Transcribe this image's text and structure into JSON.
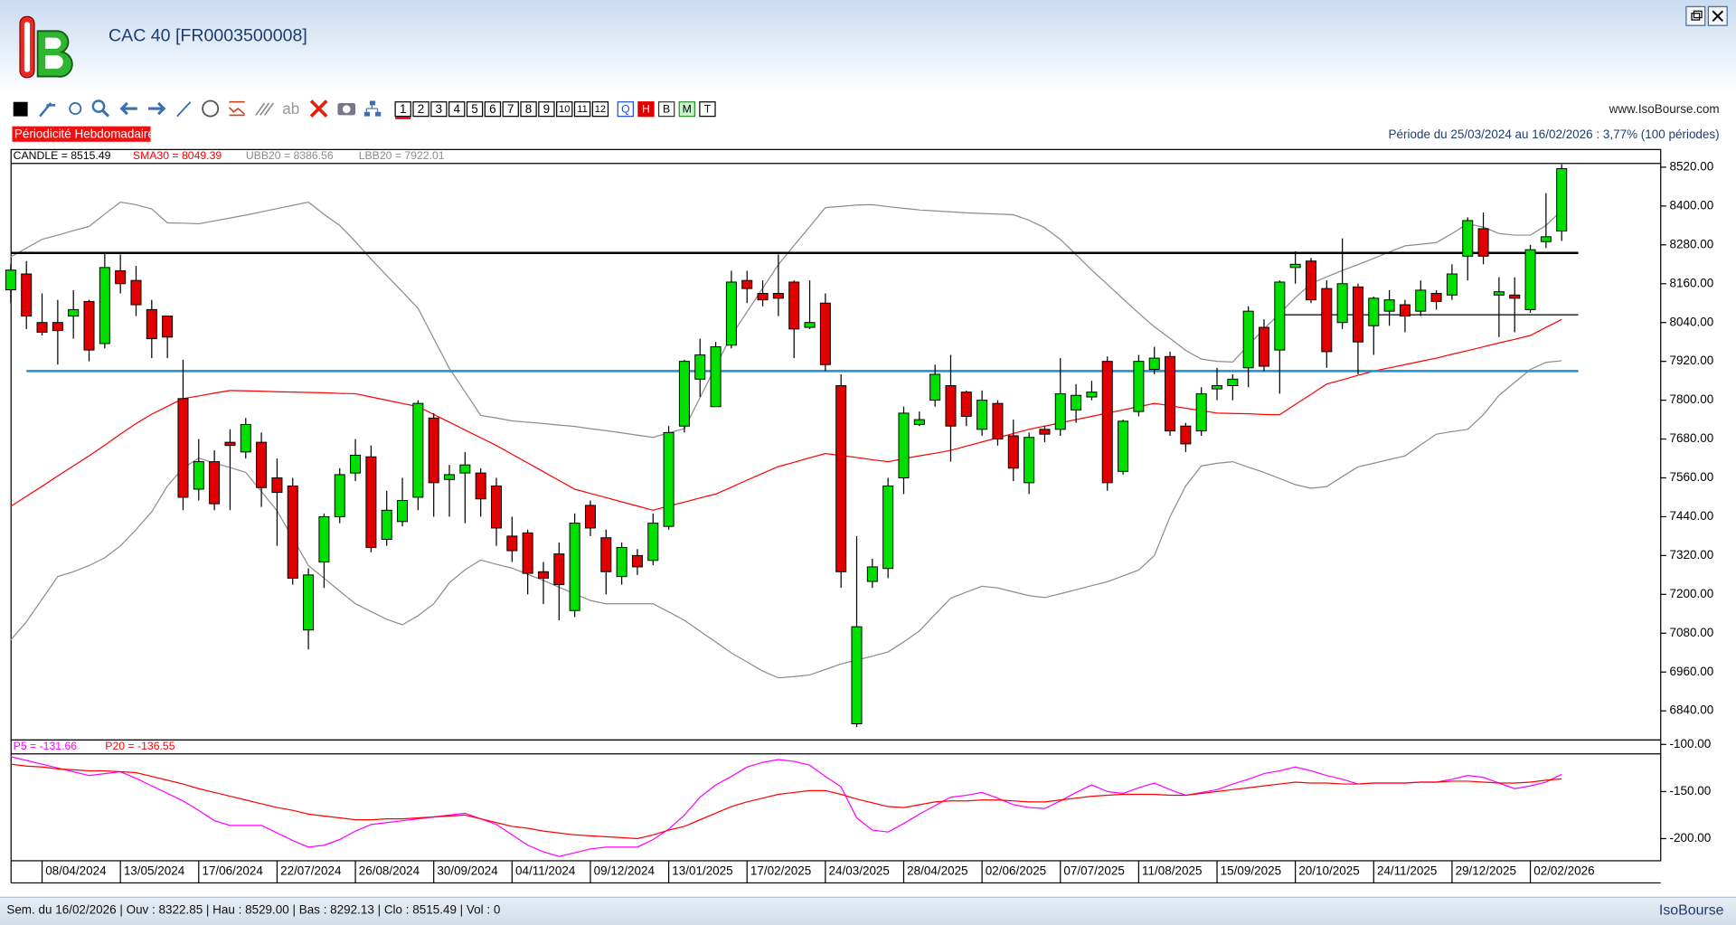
{
  "window": {
    "title": "CAC 40 [FR0003500008]",
    "website": "www.IsoBourse.com",
    "periodicity": "Périodicité Hebdomadaire",
    "period": "Période du 25/03/2024 au 16/02/2026 : 3,77% (100 périodes)",
    "footer": "Sem. du 16/02/2026 | Ouv : 8322.85 | Hau : 8529.00 | Bas : 8292.13 | Clo : 8515.49 | Vol : 0",
    "brand": "IsoBourse",
    "toolbar": {
      "text_tool": "ab",
      "numbers": [
        "1",
        "2",
        "3",
        "4",
        "5",
        "6",
        "7",
        "8",
        "9",
        "10",
        "11",
        "12"
      ],
      "views": [
        "Q",
        "H",
        "B",
        "M",
        "T"
      ]
    }
  },
  "chart_data": [
    {
      "type": "candlestick",
      "candle_label": "CANDLE = 8515.49",
      "up_color": "#00e000",
      "down_color": "#e00000",
      "categories": [
        null,
        null,
        "08/04/2024",
        null,
        null,
        null,
        null,
        "13/05/2024",
        null,
        null,
        null,
        null,
        "17/06/2024",
        null,
        null,
        null,
        null,
        "22/07/2024",
        null,
        null,
        null,
        null,
        "26/08/2024",
        null,
        null,
        null,
        null,
        "30/09/2024",
        null,
        null,
        null,
        null,
        "04/11/2024",
        null,
        null,
        null,
        null,
        "09/12/2024",
        null,
        null,
        null,
        null,
        "13/01/2025",
        null,
        null,
        null,
        null,
        "17/02/2025",
        null,
        null,
        null,
        null,
        "24/03/2025",
        null,
        null,
        null,
        null,
        "28/04/2025",
        null,
        null,
        null,
        null,
        "02/06/2025",
        null,
        null,
        null,
        null,
        "07/07/2025",
        null,
        null,
        null,
        null,
        "11/08/2025",
        null,
        null,
        null,
        null,
        "15/09/2025",
        null,
        null,
        null,
        null,
        "20/10/2025",
        null,
        null,
        null,
        null,
        "24/11/2025",
        null,
        null,
        null,
        null,
        "29/12/2025",
        null,
        null,
        null,
        null,
        "02/02/2026",
        null,
        null
      ],
      "open": [
        8141,
        8190,
        8040,
        8040,
        8060,
        8105,
        7975,
        8200,
        8170,
        8080,
        8060,
        7805,
        7525,
        7610,
        7670,
        7640,
        7670,
        7560,
        7535,
        7090,
        7300,
        7440,
        7575,
        7625,
        7370,
        7425,
        7500,
        7745,
        7555,
        7575,
        7575,
        7535,
        7380,
        7390,
        7270,
        7325,
        7150,
        7475,
        7375,
        7255,
        7320,
        7305,
        7410,
        7720,
        7865,
        7780,
        7970,
        8170,
        8130,
        8130,
        8165,
        8025,
        8100,
        7845,
        6800,
        7240,
        7280,
        7560,
        7725,
        7800,
        7845,
        7825,
        7710,
        7790,
        7690,
        7545,
        7710,
        7710,
        7770,
        7810,
        7920,
        7580,
        7765,
        7895,
        7935,
        7720,
        7705,
        7835,
        7845,
        7900,
        8025,
        7955,
        8210,
        8230,
        8145,
        8040,
        8150,
        8030,
        8075,
        8095,
        8075,
        8130,
        8125,
        8245,
        8330,
        8125,
        8125,
        8080,
        8290,
        8322.85
      ],
      "high": [
        8220,
        8230,
        8130,
        8110,
        8140,
        8110,
        8255,
        8250,
        8215,
        8110,
        8060,
        7925,
        7680,
        7645,
        7710,
        7745,
        7700,
        7620,
        7560,
        7280,
        7450,
        7590,
        7680,
        7660,
        7520,
        7560,
        7800,
        7760,
        7600,
        7640,
        7590,
        7560,
        7440,
        7400,
        7300,
        7360,
        7450,
        7490,
        7400,
        7360,
        7340,
        7450,
        7720,
        7925,
        7990,
        7980,
        8200,
        8200,
        8170,
        8250,
        8170,
        8170,
        8130,
        7880,
        7380,
        7310,
        7560,
        7780,
        7765,
        7910,
        7940,
        7830,
        7830,
        7800,
        7740,
        7700,
        7720,
        7930,
        7850,
        7860,
        7935,
        7740,
        7940,
        7965,
        7950,
        7730,
        7840,
        7900,
        7880,
        8090,
        8050,
        8170,
        8260,
        8240,
        8170,
        8300,
        8160,
        8120,
        8140,
        8110,
        8170,
        8140,
        8220,
        8365,
        8380,
        8180,
        8180,
        8280,
        8440,
        8529
      ],
      "low": [
        8100,
        8020,
        8000,
        7910,
        7990,
        7920,
        7960,
        8130,
        8060,
        7930,
        7930,
        7460,
        7490,
        7460,
        7460,
        7620,
        7470,
        7350,
        7230,
        7030,
        7220,
        7420,
        7550,
        7330,
        7350,
        7410,
        7460,
        7440,
        7440,
        7420,
        7440,
        7350,
        7300,
        7200,
        7170,
        7120,
        7130,
        7380,
        7200,
        7230,
        7260,
        7290,
        7400,
        7700,
        7810,
        7780,
        7960,
        8100,
        8090,
        8060,
        7930,
        8020,
        7890,
        7220,
        6790,
        7220,
        7250,
        7510,
        7720,
        7780,
        7610,
        7720,
        7690,
        7660,
        7550,
        7510,
        7670,
        7690,
        7730,
        7800,
        7520,
        7570,
        7750,
        7880,
        7690,
        7640,
        7690,
        7800,
        7800,
        7840,
        7890,
        7820,
        8160,
        8100,
        7900,
        8020,
        7880,
        7940,
        8030,
        8010,
        8060,
        8080,
        8110,
        8170,
        8220,
        7995,
        8010,
        8070,
        8270,
        8292.13
      ],
      "close": [
        8202,
        8060,
        8010,
        8015,
        8080,
        7955,
        8210,
        8160,
        8095,
        7990,
        7995,
        7500,
        7610,
        7480,
        7660,
        7725,
        7530,
        7515,
        7250,
        7260,
        7440,
        7570,
        7630,
        7345,
        7460,
        7490,
        7790,
        7545,
        7570,
        7600,
        7495,
        7405,
        7335,
        7265,
        7250,
        7230,
        7420,
        7405,
        7270,
        7345,
        7285,
        7420,
        7700,
        7920,
        7940,
        7965,
        8165,
        8145,
        8110,
        8115,
        8020,
        8040,
        7910,
        7270,
        7100,
        7285,
        7535,
        7760,
        7740,
        7880,
        7720,
        7750,
        7800,
        7680,
        7590,
        7685,
        7695,
        7820,
        7815,
        7825,
        7545,
        7735,
        7920,
        7930,
        7705,
        7665,
        7820,
        7845,
        7865,
        8075,
        7905,
        8165,
        8220,
        8110,
        7950,
        8160,
        7980,
        8115,
        8110,
        8060,
        8140,
        8105,
        8190,
        8355,
        8245,
        8135,
        8115,
        8265,
        8305,
        8515.49
      ],
      "overlays": [
        {
          "name": "SMA30 = 8049.39",
          "color": "#ff0000",
          "values": [
            7472,
            7503,
            7534,
            7566,
            7597,
            7628,
            7661,
            7695,
            7728,
            7757,
            7781,
            7805,
            7813,
            7822,
            7830,
            7829,
            7828,
            7826,
            7825,
            7824,
            7823,
            7821,
            7820,
            7810,
            7800,
            7790,
            7780,
            7756,
            7732,
            7708,
            7684,
            7660,
            7633,
            7606,
            7579,
            7552,
            7525,
            7512,
            7499,
            7486,
            7473,
            7460,
            7473,
            7485,
            7498,
            7510,
            7531,
            7553,
            7574,
            7595,
            7608,
            7622,
            7635,
            7629,
            7623,
            7616,
            7610,
            7619,
            7628,
            7636,
            7645,
            7658,
            7671,
            7684,
            7697,
            7710,
            7720,
            7730,
            7740,
            7750,
            7760,
            7770,
            7780,
            7790,
            7783,
            7775,
            7768,
            7760,
            7759,
            7758,
            7756,
            7755,
            7787,
            7818,
            7850,
            7863,
            7877,
            7890,
            7900,
            7910,
            7920,
            7930,
            7942,
            7953,
            7965,
            7977,
            7988,
            8000,
            8025,
            8049.39
          ]
        },
        {
          "name": "UBB20 = 8386.56",
          "color": "#8c8c8c",
          "values": [
            8243,
            8270,
            8297,
            8310,
            8324,
            8337,
            8375,
            8412,
            8404,
            8391,
            8348,
            8347,
            8345,
            8354,
            8363,
            8372,
            8382,
            8392,
            8402,
            8412,
            8374,
            8340,
            8290,
            8236,
            8185,
            8135,
            8084,
            7991,
            7898,
            7826,
            7753,
            7745,
            7736,
            7732,
            7728,
            7723,
            7719,
            7712,
            7706,
            7699,
            7692,
            7685,
            7699,
            7712,
            7808,
            7904,
            8000,
            8073,
            8146,
            8219,
            8278,
            8336,
            8395,
            8399,
            8403,
            8404,
            8398,
            8393,
            8388,
            8385,
            8382,
            8379,
            8377,
            8375,
            8373,
            8356,
            8333,
            8297,
            8250,
            8202,
            8158,
            8113,
            8069,
            8027,
            7991,
            7954,
            7927,
            7920,
            7918,
            7970,
            8020,
            8068,
            8117,
            8160,
            8181,
            8201,
            8219,
            8238,
            8258,
            8277,
            8282,
            8287,
            8315,
            8345,
            8335,
            8315,
            8310,
            8310,
            8340,
            8386.56
          ]
        },
        {
          "name": "LBB20 = 7922.01",
          "color": "#8c8c8c",
          "values": [
            7059,
            7115,
            7185,
            7255,
            7270,
            7289,
            7313,
            7350,
            7400,
            7455,
            7535,
            7590,
            7621,
            7606,
            7592,
            7577,
            7518,
            7458,
            7374,
            7289,
            7250,
            7210,
            7171,
            7147,
            7123,
            7106,
            7134,
            7171,
            7236,
            7276,
            7306,
            7293,
            7281,
            7262,
            7243,
            7222,
            7202,
            7181,
            7171,
            7171,
            7171,
            7171,
            7146,
            7120,
            7086,
            7053,
            7019,
            6991,
            6963,
            6942,
            6946,
            6951,
            6968,
            6985,
            6997,
            7009,
            7022,
            7053,
            7087,
            7138,
            7188,
            7207,
            7225,
            7220,
            7208,
            7196,
            7190,
            7202,
            7214,
            7227,
            7239,
            7257,
            7275,
            7320,
            7440,
            7535,
            7597,
            7605,
            7610,
            7593,
            7577,
            7558,
            7539,
            7528,
            7533,
            7564,
            7594,
            7605,
            7617,
            7628,
            7662,
            7695,
            7703,
            7710,
            7755,
            7815,
            7855,
            7895,
            7917,
            7922.01
          ]
        }
      ],
      "hlines": [
        {
          "value": 8255,
          "color": "#000000",
          "style": "bold",
          "from": 0
        },
        {
          "value": 7890,
          "color": "#1f8fd0",
          "style": "bold",
          "from": 1
        },
        {
          "value": 8064,
          "color": "#000000",
          "style": "thin",
          "from": 81
        }
      ],
      "ylim": [
        6750,
        8530
      ],
      "yticks": [
        {
          "value": 8520,
          "label": "8520.00"
        },
        {
          "value": 8400,
          "label": "8400.00"
        },
        {
          "value": 8280,
          "label": "8280.00"
        },
        {
          "value": 8160,
          "label": "8160.00"
        },
        {
          "value": 8040,
          "label": "8040.00"
        },
        {
          "value": 7920,
          "label": "7920.00"
        },
        {
          "value": 7800,
          "label": "7800.00"
        },
        {
          "value": 7680,
          "label": "7680.00"
        },
        {
          "value": 7560,
          "label": "7560.00"
        },
        {
          "value": 7440,
          "label": "7440.00"
        },
        {
          "value": 7320,
          "label": "7320.00"
        },
        {
          "value": 7200,
          "label": "7200.00"
        },
        {
          "value": 7080,
          "label": "7080.00"
        },
        {
          "value": 6960,
          "label": "6960.00"
        },
        {
          "value": 6840,
          "label": "6840.00"
        }
      ]
    },
    {
      "type": "line",
      "series": [
        {
          "name": "P5 = -131.66",
          "color": "#ff00ff",
          "values": [
            -113,
            -117,
            -121,
            -125,
            -129,
            -133,
            -131,
            -129,
            -136,
            -144,
            -152,
            -160,
            -170,
            -181,
            -186,
            -186,
            -186,
            -194,
            -202,
            -209,
            -207,
            -201,
            -192,
            -185,
            -183,
            -181,
            -179,
            -177,
            -175,
            -173,
            -179,
            -185,
            -196,
            -207,
            -214,
            -219,
            -215,
            -211,
            -209,
            -209,
            -209,
            -201,
            -190,
            -175,
            -156,
            -143,
            -134,
            -124,
            -119,
            -116,
            -118,
            -122,
            -134,
            -145,
            -178,
            -191,
            -193,
            -184,
            -174,
            -165,
            -156,
            -154,
            -151,
            -157,
            -164,
            -167,
            -168,
            -160,
            -151,
            -143,
            -150,
            -152,
            -146,
            -141,
            -148,
            -154,
            -151,
            -148,
            -142,
            -137,
            -131,
            -128,
            -124,
            -128,
            -133,
            -137,
            -142,
            -141,
            -141,
            -141,
            -140,
            -140,
            -137,
            -133,
            -135,
            -141,
            -147,
            -144,
            -140,
            -131.66
          ]
        },
        {
          "name": "P20 = -136.55",
          "color": "#ff0000",
          "values": [
            -121,
            -123,
            -124,
            -126,
            -127,
            -128,
            -128,
            -129,
            -130,
            -134,
            -138,
            -142,
            -147,
            -151,
            -155,
            -159,
            -163,
            -167,
            -170,
            -174,
            -176,
            -178,
            -180,
            -180,
            -179,
            -179,
            -178,
            -177,
            -176,
            -175,
            -179,
            -183,
            -187,
            -189,
            -192,
            -194,
            -196,
            -197,
            -198,
            -199,
            -200,
            -196,
            -191,
            -187,
            -180,
            -173,
            -166,
            -161,
            -157,
            -153,
            -151,
            -149,
            -149,
            -153,
            -158,
            -162,
            -166,
            -167,
            -164,
            -161,
            -160,
            -160,
            -159,
            -159,
            -160,
            -161,
            -161,
            -159,
            -157,
            -155,
            -154,
            -153,
            -153,
            -153,
            -154,
            -154,
            -152,
            -150,
            -148,
            -146,
            -144,
            -142,
            -140,
            -141,
            -141,
            -142,
            -142,
            -141,
            -141,
            -141,
            -140,
            -140,
            -139,
            -139,
            -140,
            -141,
            -141,
            -140,
            -138,
            -136.55
          ]
        }
      ],
      "ylim": [
        -223.5,
        -95.3
      ],
      "yticks": [
        {
          "value": -100,
          "label": "-100.00"
        },
        {
          "value": -150,
          "label": "-150.00"
        },
        {
          "value": -200,
          "label": "-200.00"
        }
      ]
    }
  ]
}
